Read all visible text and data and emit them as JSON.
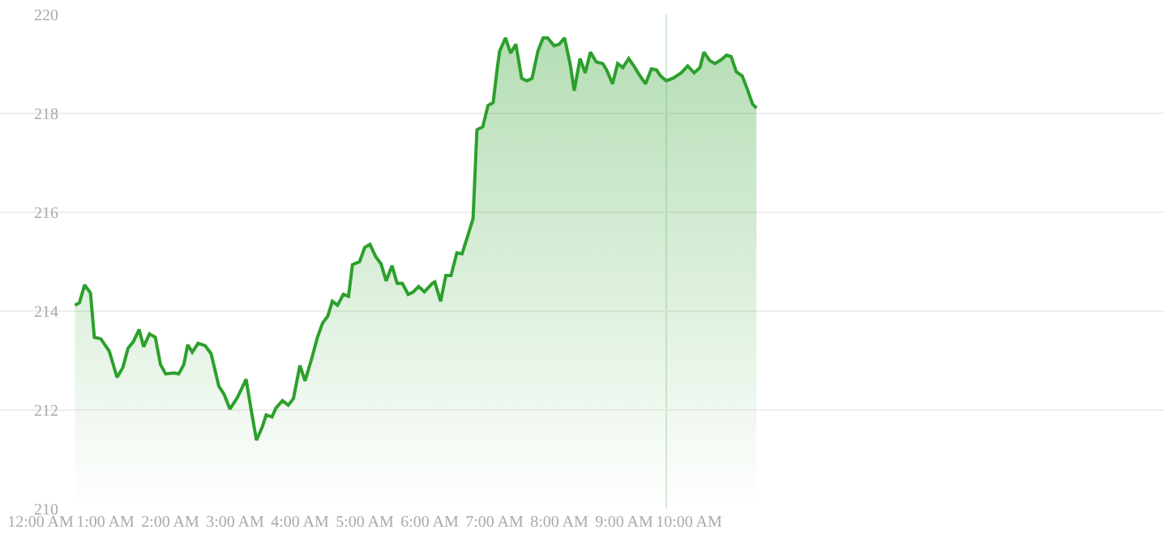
{
  "chart_data": {
    "type": "area",
    "color": "#2ca02c",
    "x": [
      0.53,
      0.6,
      0.68,
      0.77,
      0.83,
      0.93,
      1.06,
      1.18,
      1.27,
      1.35,
      1.43,
      1.52,
      1.59,
      1.68,
      1.77,
      1.85,
      1.93,
      2.06,
      2.13,
      2.21,
      2.27,
      2.34,
      2.43,
      2.54,
      2.63,
      2.75,
      2.83,
      2.92,
      3.03,
      3.1,
      3.17,
      3.25,
      3.33,
      3.42,
      3.48,
      3.57,
      3.63,
      3.73,
      3.82,
      3.9,
      4.0,
      4.08,
      4.19,
      4.27,
      4.35,
      4.43,
      4.5,
      4.58,
      4.67,
      4.75,
      4.81,
      4.92,
      5.0,
      5.08,
      5.17,
      5.25,
      5.33,
      5.42,
      5.5,
      5.58,
      5.67,
      5.75,
      5.83,
      5.92,
      6.04,
      6.08,
      6.17,
      6.25,
      6.33,
      6.42,
      6.5,
      6.58,
      6.67,
      6.73,
      6.82,
      6.9,
      6.98,
      7.04,
      7.08,
      7.17,
      7.25,
      7.33,
      7.42,
      7.5,
      7.58,
      7.67,
      7.75,
      7.82,
      7.92,
      8.0,
      8.08,
      8.17,
      8.23,
      8.32,
      8.4,
      8.48,
      8.57,
      8.67,
      8.73,
      8.82,
      8.9,
      8.98,
      9.07,
      9.15,
      9.23,
      9.33,
      9.42,
      9.5,
      9.56,
      9.65,
      9.75,
      9.88,
      9.98,
      10.08,
      10.17,
      10.23,
      10.32,
      10.4,
      10.5,
      10.58,
      10.65,
      10.73,
      10.82,
      10.9,
      10.98,
      11.04
    ],
    "values": [
      214.12,
      214.17,
      214.53,
      214.37,
      213.47,
      213.44,
      213.19,
      212.66,
      212.86,
      213.25,
      213.38,
      213.63,
      213.28,
      213.54,
      213.47,
      212.92,
      212.73,
      212.75,
      212.73,
      212.92,
      213.32,
      213.17,
      213.35,
      213.3,
      213.14,
      212.48,
      212.32,
      212.02,
      212.24,
      212.43,
      212.62,
      211.99,
      211.39,
      211.66,
      211.9,
      211.86,
      212.04,
      212.19,
      212.1,
      212.23,
      212.9,
      212.59,
      213.08,
      213.47,
      213.76,
      213.9,
      214.2,
      214.12,
      214.34,
      214.3,
      214.94,
      215.0,
      215.29,
      215.35,
      215.1,
      214.96,
      214.61,
      214.92,
      214.56,
      214.56,
      214.34,
      214.39,
      214.5,
      214.39,
      214.56,
      214.59,
      214.2,
      214.72,
      214.72,
      215.18,
      215.16,
      215.49,
      215.87,
      217.67,
      217.73,
      218.16,
      218.22,
      218.88,
      219.26,
      219.53,
      219.22,
      219.4,
      218.71,
      218.66,
      218.71,
      219.26,
      219.53,
      219.53,
      219.37,
      219.4,
      219.53,
      218.98,
      218.46,
      219.11,
      218.82,
      219.24,
      219.04,
      219.01,
      218.88,
      218.6,
      219.01,
      218.93,
      219.11,
      218.96,
      218.79,
      218.6,
      218.9,
      218.88,
      218.76,
      218.66,
      218.71,
      218.82,
      218.96,
      218.82,
      218.93,
      219.24,
      219.07,
      219.01,
      219.09,
      219.18,
      219.15,
      218.84,
      218.76,
      218.49,
      218.19,
      218.11
    ],
    "xlim": [
      -0.625,
      17.325
    ],
    "xticks": [
      {
        "value": 0,
        "label": "12:00 AM"
      },
      {
        "value": 1,
        "label": "1:00 AM"
      },
      {
        "value": 2,
        "label": "2:00 AM"
      },
      {
        "value": 3,
        "label": "3:00 AM"
      },
      {
        "value": 4,
        "label": "4:00 AM"
      },
      {
        "value": 5,
        "label": "5:00 AM"
      },
      {
        "value": 6,
        "label": "6:00 AM"
      },
      {
        "value": 7,
        "label": "7:00 AM"
      },
      {
        "value": 8,
        "label": "8:00 AM"
      },
      {
        "value": 9,
        "label": "9:00 AM"
      },
      {
        "value": 10,
        "label": "10:00 AM"
      }
    ],
    "ylim": [
      210,
      220
    ],
    "yticks": [
      210,
      212,
      214,
      216,
      218,
      220
    ],
    "grid": "y",
    "line_style": "solid",
    "ref_lines": [
      {
        "axis": "x",
        "value": 9.65,
        "color": "#d6ebd6"
      }
    ]
  }
}
